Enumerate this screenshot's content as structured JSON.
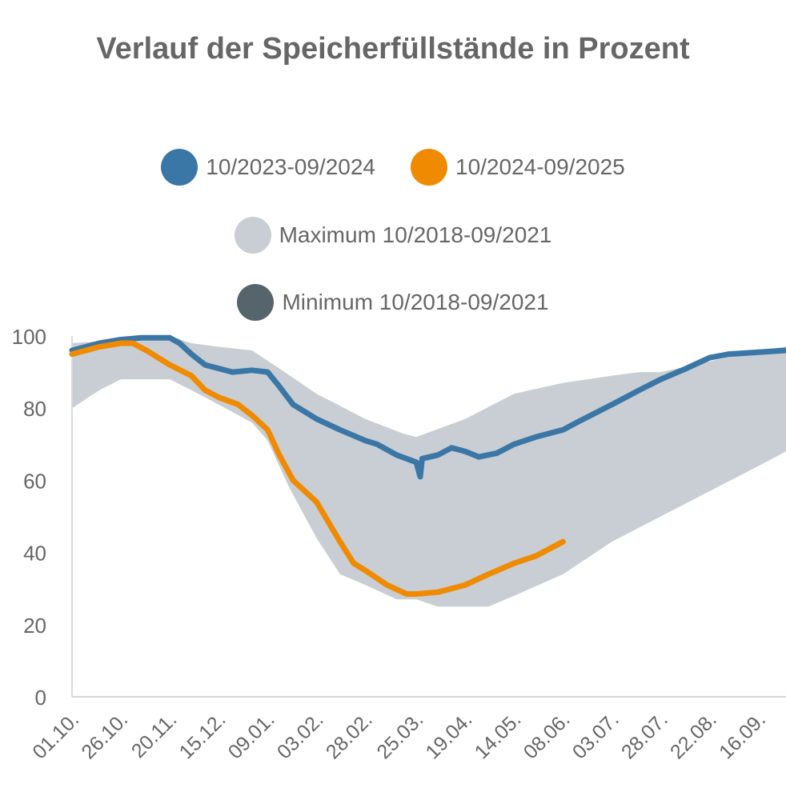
{
  "chart_data": {
    "type": "line",
    "title": "Verlauf der Speicherfüllstände in Prozent",
    "xlabel": "",
    "ylabel": "",
    "ylim": [
      0,
      100
    ],
    "y_ticks": [
      "0",
      "20",
      "40",
      "60",
      "80",
      "100"
    ],
    "x_ticks": [
      "01.10.",
      "26.10.",
      "20.11.",
      "15.12.",
      "09.01.",
      "03.02.",
      "28.02.",
      "25.03.",
      "19.04.",
      "14.05.",
      "08.06.",
      "03.07.",
      "28.07.",
      "22.08.",
      "16.09."
    ],
    "legend_placement": "top",
    "grid": false,
    "band": {
      "upper_name": "Maximum 10/2018-09/2021",
      "lower_name": "Minimum 10/2018-09/2021",
      "fill_color": "#c8ced3",
      "upper": [
        {
          "date": "01.10.",
          "value": 98
        },
        {
          "date": "26.10.",
          "value": 99
        },
        {
          "date": "08.11.",
          "value": 100
        },
        {
          "date": "20.11.",
          "value": 100
        },
        {
          "date": "01.12.",
          "value": 98
        },
        {
          "date": "15.12.",
          "value": 97
        },
        {
          "date": "01.01.",
          "value": 96
        },
        {
          "date": "15.01.",
          "value": 91
        },
        {
          "date": "03.02.",
          "value": 84
        },
        {
          "date": "28.02.",
          "value": 77
        },
        {
          "date": "18.03.",
          "value": 73
        },
        {
          "date": "25.03.",
          "value": 72
        },
        {
          "date": "19.04.",
          "value": 77
        },
        {
          "date": "14.05.",
          "value": 84
        },
        {
          "date": "08.06.",
          "value": 87
        },
        {
          "date": "03.07.",
          "value": 89
        },
        {
          "date": "17.07.",
          "value": 90
        },
        {
          "date": "28.07.",
          "value": 90
        },
        {
          "date": "22.08.",
          "value": 93
        },
        {
          "date": "16.09.",
          "value": 96
        },
        {
          "date": "30.09.",
          "value": 97
        }
      ],
      "lower": [
        {
          "date": "01.10.",
          "value": 80
        },
        {
          "date": "15.10.",
          "value": 85
        },
        {
          "date": "26.10.",
          "value": 88
        },
        {
          "date": "20.11.",
          "value": 88
        },
        {
          "date": "01.12.",
          "value": 85
        },
        {
          "date": "15.12.",
          "value": 81
        },
        {
          "date": "01.01.",
          "value": 76
        },
        {
          "date": "09.01.",
          "value": 71
        },
        {
          "date": "20.01.",
          "value": 58
        },
        {
          "date": "03.02.",
          "value": 44
        },
        {
          "date": "15.02.",
          "value": 34
        },
        {
          "date": "28.02.",
          "value": 31
        },
        {
          "date": "15.03.",
          "value": 27
        },
        {
          "date": "25.03.",
          "value": 27
        },
        {
          "date": "05.04.",
          "value": 25
        },
        {
          "date": "19.04.",
          "value": 25
        },
        {
          "date": "01.05.",
          "value": 25
        },
        {
          "date": "14.05.",
          "value": 28
        },
        {
          "date": "08.06.",
          "value": 34
        },
        {
          "date": "03.07.",
          "value": 43
        },
        {
          "date": "28.07.",
          "value": 50
        },
        {
          "date": "22.08.",
          "value": 57
        },
        {
          "date": "16.09.",
          "value": 64
        },
        {
          "date": "30.09.",
          "value": 68
        }
      ]
    },
    "series": [
      {
        "name": "10/2023-09/2024",
        "color": "#3a76a6",
        "points": [
          {
            "date": "01.10.",
            "value": 96
          },
          {
            "date": "15.10.",
            "value": 98
          },
          {
            "date": "26.10.",
            "value": 99
          },
          {
            "date": "05.11.",
            "value": 99.5
          },
          {
            "date": "15.11.",
            "value": 99.5
          },
          {
            "date": "20.11.",
            "value": 99.5
          },
          {
            "date": "25.11.",
            "value": 98
          },
          {
            "date": "01.12.",
            "value": 95
          },
          {
            "date": "08.12.",
            "value": 92
          },
          {
            "date": "15.12.",
            "value": 91
          },
          {
            "date": "22.12.",
            "value": 90
          },
          {
            "date": "01.01.",
            "value": 90.5
          },
          {
            "date": "09.01.",
            "value": 90
          },
          {
            "date": "15.01.",
            "value": 86
          },
          {
            "date": "22.01.",
            "value": 81
          },
          {
            "date": "03.02.",
            "value": 77
          },
          {
            "date": "15.02.",
            "value": 74
          },
          {
            "date": "28.02.",
            "value": 71
          },
          {
            "date": "05.03.",
            "value": 70
          },
          {
            "date": "15.03.",
            "value": 67
          },
          {
            "date": "25.03.",
            "value": 65
          },
          {
            "date": "27.03.",
            "value": 61
          },
          {
            "date": "28.03.",
            "value": 66
          },
          {
            "date": "05.04.",
            "value": 67
          },
          {
            "date": "12.04.",
            "value": 69
          },
          {
            "date": "19.04.",
            "value": 68
          },
          {
            "date": "26.04.",
            "value": 66.5
          },
          {
            "date": "05.05.",
            "value": 67.5
          },
          {
            "date": "14.05.",
            "value": 70
          },
          {
            "date": "25.05.",
            "value": 72
          },
          {
            "date": "08.06.",
            "value": 74
          },
          {
            "date": "15.06.",
            "value": 76
          },
          {
            "date": "03.07.",
            "value": 81
          },
          {
            "date": "17.07.",
            "value": 85
          },
          {
            "date": "28.07.",
            "value": 88
          },
          {
            "date": "10.08.",
            "value": 91
          },
          {
            "date": "22.08.",
            "value": 94
          },
          {
            "date": "01.09.",
            "value": 95
          },
          {
            "date": "16.09.",
            "value": 95.5
          },
          {
            "date": "30.09.",
            "value": 96
          }
        ]
      },
      {
        "name": "10/2024-09/2025",
        "color": "#f08a00",
        "points": [
          {
            "date": "01.10.",
            "value": 95
          },
          {
            "date": "15.10.",
            "value": 97
          },
          {
            "date": "26.10.",
            "value": 98
          },
          {
            "date": "01.11.",
            "value": 98
          },
          {
            "date": "08.11.",
            "value": 96
          },
          {
            "date": "20.11.",
            "value": 92
          },
          {
            "date": "01.12.",
            "value": 89
          },
          {
            "date": "08.12.",
            "value": 85
          },
          {
            "date": "15.12.",
            "value": 83
          },
          {
            "date": "25.12.",
            "value": 81
          },
          {
            "date": "01.01.",
            "value": 78
          },
          {
            "date": "09.01.",
            "value": 74
          },
          {
            "date": "15.01.",
            "value": 67
          },
          {
            "date": "22.01.",
            "value": 60
          },
          {
            "date": "03.02.",
            "value": 54
          },
          {
            "date": "15.02.",
            "value": 43
          },
          {
            "date": "22.02.",
            "value": 37
          },
          {
            "date": "28.02.",
            "value": 35
          },
          {
            "date": "10.03.",
            "value": 31
          },
          {
            "date": "20.03.",
            "value": 28.5
          },
          {
            "date": "25.03.",
            "value": 28.5
          },
          {
            "date": "05.04.",
            "value": 29
          },
          {
            "date": "19.04.",
            "value": 31
          },
          {
            "date": "01.05.",
            "value": 34
          },
          {
            "date": "14.05.",
            "value": 37
          },
          {
            "date": "25.05.",
            "value": 39
          },
          {
            "date": "01.06.",
            "value": 41
          },
          {
            "date": "08.06.",
            "value": 43
          }
        ]
      }
    ]
  },
  "legend": [
    {
      "label": "10/2023-09/2024",
      "color": "#3a76a6"
    },
    {
      "label": "10/2024-09/2025",
      "color": "#f08a00"
    },
    {
      "label": "Maximum 10/2018-09/2021",
      "color": "#c8ced3"
    },
    {
      "label": "Minimum 10/2018-09/2021",
      "color": "#56646c"
    }
  ]
}
